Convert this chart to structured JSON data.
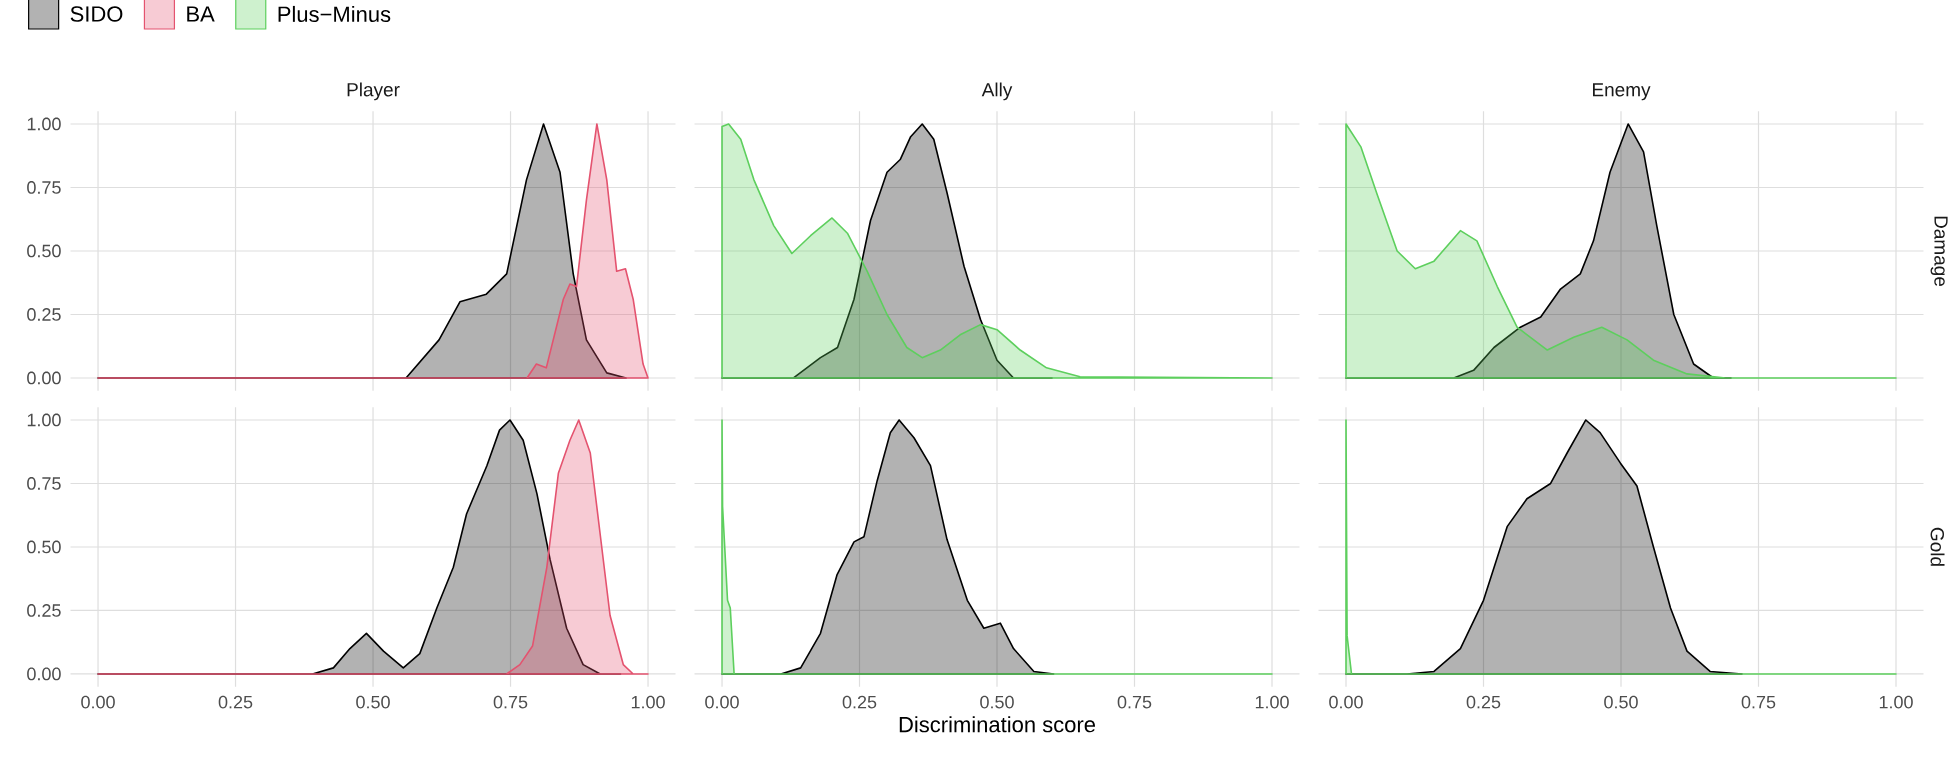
{
  "chart_data": [
    {
      "type": "area",
      "title": "Player",
      "xlim": [
        -0.05,
        1.05
      ],
      "ylim": [
        -0.05,
        1.05
      ],
      "grid": true,
      "tick_labels": "y",
      "legend": "top left",
      "xticks": [
        {
          "value": 0,
          "label": null
        },
        {
          "value": 0.25,
          "label": null
        },
        {
          "value": 0.5,
          "label": null
        },
        {
          "value": 0.75,
          "label": null
        },
        {
          "value": 1,
          "label": null
        }
      ],
      "yticks": [
        {
          "value": 0,
          "label": "0.00"
        },
        {
          "value": 0.25,
          "label": "0.25"
        },
        {
          "value": 0.5,
          "label": "0.50"
        },
        {
          "value": 0.75,
          "label": "0.75"
        },
        {
          "value": 1,
          "label": "1.00"
        }
      ],
      "series": [
        {
          "name": "SIDO",
          "color": "#000000",
          "x": [
            0,
            0.56,
            0.62,
            0.658,
            0.706,
            0.743,
            0.779,
            0.81,
            0.84,
            0.864,
            0.888,
            0.925,
            0.96
          ],
          "values": [
            0,
            0,
            0.15,
            0.3,
            0.33,
            0.41,
            0.78,
            1.0,
            0.81,
            0.41,
            0.15,
            0.02,
            0
          ]
        },
        {
          "name": "BA",
          "color": "#e4536f",
          "x": [
            0,
            0.78,
            0.797,
            0.815,
            0.846,
            0.858,
            0.87,
            0.888,
            0.907,
            0.925,
            0.943,
            0.959,
            0.973,
            0.991,
            1.0
          ],
          "values": [
            0,
            0,
            0.055,
            0.04,
            0.31,
            0.37,
            0.36,
            0.7,
            1.0,
            0.78,
            0.42,
            0.43,
            0.31,
            0.055,
            0
          ]
        }
      ]
    },
    {
      "type": "area",
      "title": "Ally",
      "xlim": [
        -0.05,
        1.05
      ],
      "ylim": [
        -0.05,
        1.05
      ],
      "grid": true,
      "tick_labels": false,
      "xticks": [
        {
          "value": 0,
          "label": null
        },
        {
          "value": 0.25,
          "label": null
        },
        {
          "value": 0.5,
          "label": null
        },
        {
          "value": 0.75,
          "label": null
        },
        {
          "value": 1,
          "label": null
        }
      ],
      "yticks": [
        {
          "value": 0,
          "label": null
        },
        {
          "value": 0.25,
          "label": null
        },
        {
          "value": 0.5,
          "label": null
        },
        {
          "value": 0.75,
          "label": null
        },
        {
          "value": 1,
          "label": null
        }
      ],
      "series": [
        {
          "color": "#000000",
          "x": [
            0,
            0.13,
            0.179,
            0.21,
            0.24,
            0.27,
            0.3,
            0.324,
            0.343,
            0.364,
            0.385,
            0.409,
            0.44,
            0.47,
            0.5,
            0.53,
            0.6
          ],
          "values": [
            0,
            0,
            0.08,
            0.12,
            0.31,
            0.62,
            0.81,
            0.86,
            0.95,
            1.0,
            0.94,
            0.73,
            0.44,
            0.23,
            0.07,
            0,
            0
          ]
        },
        {
          "name": "Plus−Minus",
          "color": "#5dcf5d",
          "x": [
            0,
            0.012,
            0.034,
            0.058,
            0.094,
            0.127,
            0.161,
            0.2,
            0.228,
            0.264,
            0.3,
            0.336,
            0.364,
            0.397,
            0.433,
            0.47,
            0.5,
            0.542,
            0.59,
            0.651,
            1.0
          ],
          "values": [
            0.99,
            1.0,
            0.94,
            0.78,
            0.6,
            0.49,
            0.56,
            0.63,
            0.57,
            0.42,
            0.25,
            0.12,
            0.08,
            0.11,
            0.17,
            0.21,
            0.19,
            0.11,
            0.04,
            0.005,
            0
          ]
        }
      ]
    },
    {
      "type": "area",
      "title": "Enemy",
      "y2label": "Damage",
      "xlim": [
        -0.05,
        1.05
      ],
      "ylim": [
        -0.05,
        1.05
      ],
      "grid": true,
      "tick_labels": false,
      "xticks": [
        {
          "value": 0,
          "label": null
        },
        {
          "value": 0.25,
          "label": null
        },
        {
          "value": 0.5,
          "label": null
        },
        {
          "value": 0.75,
          "label": null
        },
        {
          "value": 1,
          "label": null
        }
      ],
      "yticks": [
        {
          "value": 0,
          "label": null
        },
        {
          "value": 0.25,
          "label": null
        },
        {
          "value": 0.5,
          "label": null
        },
        {
          "value": 0.75,
          "label": null
        },
        {
          "value": 1,
          "label": null
        }
      ],
      "series": [
        {
          "color": "#000000",
          "x": [
            0,
            0.196,
            0.232,
            0.269,
            0.317,
            0.354,
            0.39,
            0.426,
            0.45,
            0.48,
            0.513,
            0.541,
            0.565,
            0.596,
            0.632,
            0.668,
            0.7
          ],
          "values": [
            0,
            0,
            0.03,
            0.12,
            0.2,
            0.24,
            0.35,
            0.41,
            0.54,
            0.81,
            1.0,
            0.89,
            0.6,
            0.25,
            0.055,
            0,
            0
          ]
        },
        {
          "color": "#5dcf5d",
          "x": [
            0,
            0.027,
            0.057,
            0.093,
            0.126,
            0.16,
            0.208,
            0.238,
            0.275,
            0.311,
            0.366,
            0.414,
            0.465,
            0.511,
            0.559,
            0.62,
            0.69,
            1.0
          ],
          "values": [
            1.0,
            0.91,
            0.72,
            0.5,
            0.43,
            0.46,
            0.58,
            0.54,
            0.36,
            0.2,
            0.11,
            0.16,
            0.2,
            0.15,
            0.07,
            0.016,
            0,
            0
          ]
        }
      ]
    },
    {
      "type": "area",
      "xlim": [
        -0.05,
        1.05
      ],
      "ylim": [
        -0.05,
        1.05
      ],
      "grid": true,
      "xticks": [
        {
          "value": 0,
          "label": "0.00"
        },
        {
          "value": 0.25,
          "label": "0.25"
        },
        {
          "value": 0.5,
          "label": "0.50"
        },
        {
          "value": 0.75,
          "label": "0.75"
        },
        {
          "value": 1,
          "label": "1.00"
        }
      ],
      "yticks": [
        {
          "value": 0,
          "label": "0.00"
        },
        {
          "value": 0.25,
          "label": "0.25"
        },
        {
          "value": 0.5,
          "label": "0.50"
        },
        {
          "value": 0.75,
          "label": "0.75"
        },
        {
          "value": 1,
          "label": "1.00"
        }
      ],
      "series": [
        {
          "color": "#000000",
          "x": [
            0,
            0.39,
            0.428,
            0.458,
            0.488,
            0.519,
            0.555,
            0.585,
            0.616,
            0.646,
            0.67,
            0.707,
            0.73,
            0.749,
            0.773,
            0.798,
            0.822,
            0.852,
            0.882,
            0.913,
            0.95
          ],
          "values": [
            0,
            0,
            0.024,
            0.1,
            0.16,
            0.09,
            0.024,
            0.08,
            0.26,
            0.42,
            0.63,
            0.82,
            0.96,
            1.0,
            0.92,
            0.71,
            0.45,
            0.18,
            0.037,
            0,
            0
          ]
        },
        {
          "color": "#e4536f",
          "x": [
            0,
            0.743,
            0.767,
            0.79,
            0.816,
            0.837,
            0.858,
            0.874,
            0.895,
            0.913,
            0.931,
            0.955,
            0.973,
            1.0
          ],
          "values": [
            0,
            0,
            0.037,
            0.11,
            0.42,
            0.79,
            0.92,
            1.0,
            0.87,
            0.55,
            0.23,
            0.037,
            0,
            0
          ]
        }
      ]
    },
    {
      "type": "area",
      "xlabel": "Discrimination score",
      "xlim": [
        -0.05,
        1.05
      ],
      "ylim": [
        -0.05,
        1.05
      ],
      "grid": true,
      "tick_labels": "x",
      "xticks": [
        {
          "value": 0,
          "label": "0.00"
        },
        {
          "value": 0.25,
          "label": "0.25"
        },
        {
          "value": 0.5,
          "label": "0.50"
        },
        {
          "value": 0.75,
          "label": "0.75"
        },
        {
          "value": 1,
          "label": "1.00"
        }
      ],
      "yticks": [
        {
          "value": 0,
          "label": null
        },
        {
          "value": 0.25,
          "label": null
        },
        {
          "value": 0.5,
          "label": null
        },
        {
          "value": 0.75,
          "label": null
        },
        {
          "value": 1,
          "label": null
        }
      ],
      "series": [
        {
          "color": "#000000",
          "x": [
            0,
            0.107,
            0.143,
            0.179,
            0.209,
            0.24,
            0.258,
            0.282,
            0.306,
            0.322,
            0.349,
            0.379,
            0.409,
            0.446,
            0.476,
            0.506,
            0.53,
            0.567,
            0.603
          ],
          "values": [
            0,
            0,
            0.024,
            0.16,
            0.39,
            0.52,
            0.54,
            0.76,
            0.95,
            1.0,
            0.93,
            0.82,
            0.53,
            0.29,
            0.18,
            0.2,
            0.1,
            0.01,
            0
          ]
        },
        {
          "color": "#5dcf5d",
          "x": [
            0,
            0.001,
            0.01,
            0.015,
            0.022,
            1.0
          ],
          "values": [
            1.0,
            0.66,
            0.29,
            0.26,
            0,
            0
          ]
        }
      ]
    },
    {
      "type": "area",
      "y2label": "Gold",
      "xlim": [
        -0.05,
        1.05
      ],
      "ylim": [
        -0.05,
        1.05
      ],
      "grid": true,
      "tick_labels": "x",
      "xticks": [
        {
          "value": 0,
          "label": "0.00"
        },
        {
          "value": 0.25,
          "label": "0.25"
        },
        {
          "value": 0.5,
          "label": "0.50"
        },
        {
          "value": 0.75,
          "label": "0.75"
        },
        {
          "value": 1,
          "label": "1.00"
        }
      ],
      "yticks": [
        {
          "value": 0,
          "label": null
        },
        {
          "value": 0.25,
          "label": null
        },
        {
          "value": 0.5,
          "label": null
        },
        {
          "value": 0.75,
          "label": null
        },
        {
          "value": 1,
          "label": null
        }
      ],
      "series": [
        {
          "color": "#000000",
          "x": [
            0,
            0.111,
            0.16,
            0.208,
            0.25,
            0.293,
            0.329,
            0.372,
            0.402,
            0.436,
            0.462,
            0.499,
            0.529,
            0.559,
            0.59,
            0.62,
            0.662,
            0.72
          ],
          "values": [
            0,
            0,
            0.01,
            0.1,
            0.29,
            0.58,
            0.69,
            0.75,
            0.87,
            1.0,
            0.95,
            0.83,
            0.74,
            0.5,
            0.26,
            0.09,
            0.01,
            0
          ]
        },
        {
          "color": "#5dcf5d",
          "x": [
            0,
            0.002,
            0.01,
            1.0
          ],
          "values": [
            1.0,
            0.15,
            0,
            0
          ]
        }
      ]
    }
  ]
}
